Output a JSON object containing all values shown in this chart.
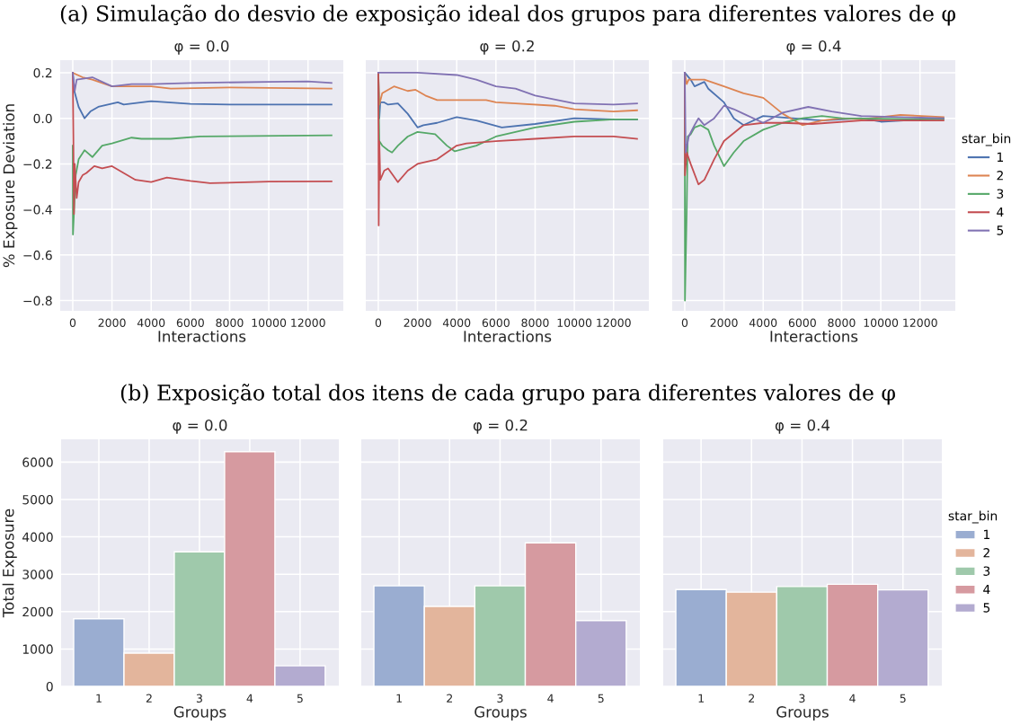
{
  "chart_data": [
    {
      "type": "line",
      "subtitle": "(a) Simulação do desvio de exposição ideal dos grupos para diferentes valores de φ",
      "title": "φ = 0.0",
      "xlabel": "Interactions",
      "ylabel": "% Exposure Deviation",
      "xlim": [
        -640,
        13800
      ],
      "ylim": [
        -0.845,
        0.255
      ],
      "xticks": [
        0,
        2000,
        4000,
        6000,
        8000,
        10000,
        12000
      ],
      "yticks": [
        {
          "value": -0.8,
          "label": "−0.8"
        },
        {
          "value": -0.6,
          "label": "−0.6"
        },
        {
          "value": -0.4,
          "label": "−0.4"
        },
        {
          "value": -0.2,
          "label": "−0.2"
        },
        {
          "value": 0.0,
          "label": "0.0"
        },
        {
          "value": 0.2,
          "label": "0.2"
        }
      ],
      "grid": true,
      "series": [
        {
          "color": "#4c72b0",
          "x": [
            0,
            80,
            300,
            600,
            900,
            1300,
            2300,
            2600,
            4000,
            6000,
            8000,
            10000,
            13200
          ],
          "values": [
            0.2,
            0.12,
            0.05,
            0.0,
            0.03,
            0.05,
            0.07,
            0.06,
            0.075,
            0.063,
            0.06,
            0.06,
            0.06
          ]
        },
        {
          "color": "#dd8452",
          "x": [
            0,
            500,
            1000,
            2000,
            3000,
            4000,
            5000,
            8000,
            13200
          ],
          "values": [
            0.2,
            0.18,
            0.17,
            0.14,
            0.14,
            0.14,
            0.13,
            0.135,
            0.13
          ]
        },
        {
          "color": "#55a868",
          "x": [
            0,
            10,
            150,
            300,
            600,
            1000,
            1500,
            2000,
            3000,
            3500,
            5000,
            6500,
            13200
          ],
          "values": [
            -0.12,
            -0.51,
            -0.25,
            -0.18,
            -0.14,
            -0.17,
            -0.12,
            -0.11,
            -0.085,
            -0.09,
            -0.09,
            -0.08,
            -0.075
          ]
        },
        {
          "color": "#c44e52",
          "x": [
            0,
            30,
            60,
            100,
            200,
            300,
            500,
            700,
            1100,
            1500,
            2000,
            3200,
            4000,
            4800,
            6000,
            7000,
            10000,
            13200
          ],
          "values": [
            0.2,
            -0.07,
            -0.42,
            -0.2,
            -0.35,
            -0.28,
            -0.25,
            -0.24,
            -0.21,
            -0.22,
            -0.21,
            -0.27,
            -0.28,
            -0.26,
            -0.275,
            -0.285,
            -0.278,
            -0.277
          ]
        },
        {
          "color": "#8172b3",
          "x": [
            0,
            100,
            200,
            1000,
            2000,
            3000,
            4000,
            6000,
            10000,
            12000,
            13200
          ],
          "values": [
            0.2,
            0.12,
            0.17,
            0.18,
            0.14,
            0.15,
            0.15,
            0.155,
            0.16,
            0.162,
            0.155
          ]
        }
      ]
    },
    {
      "type": "line",
      "title": "φ = 0.2",
      "xlabel": "Interactions",
      "xlim": [
        -640,
        13800
      ],
      "ylim": [
        -0.845,
        0.255
      ],
      "xticks": [
        0,
        2000,
        4000,
        6000,
        8000,
        10000,
        12000
      ],
      "yticks": [
        -0.8,
        -0.6,
        -0.4,
        -0.2,
        0.0,
        0.2
      ],
      "grid": true,
      "tick_labels": "x",
      "series": [
        {
          "color": "#4c72b0",
          "x": [
            0,
            50,
            100,
            300,
            500,
            1000,
            1500,
            2000,
            2300,
            3000,
            4000,
            5000,
            6300,
            8000,
            10000,
            12000,
            13200
          ],
          "values": [
            0.2,
            0.0,
            0.07,
            0.07,
            0.06,
            0.065,
            0.02,
            -0.04,
            -0.03,
            -0.02,
            0.005,
            -0.01,
            -0.04,
            -0.025,
            0.0,
            -0.005,
            -0.005
          ]
        },
        {
          "color": "#dd8452",
          "x": [
            0,
            50,
            200,
            400,
            800,
            1500,
            1900,
            2400,
            3000,
            4000,
            5500,
            6000,
            7000,
            9000,
            10000,
            12000,
            13200
          ],
          "values": [
            0.2,
            0.06,
            0.11,
            0.12,
            0.14,
            0.12,
            0.125,
            0.1,
            0.08,
            0.08,
            0.08,
            0.07,
            0.065,
            0.055,
            0.04,
            0.03,
            0.035
          ]
        },
        {
          "color": "#55a868",
          "x": [
            0,
            50,
            200,
            500,
            700,
            1000,
            1500,
            2000,
            2900,
            3500,
            3900,
            5000,
            6000,
            8000,
            10000,
            12000,
            13200
          ],
          "values": [
            0.2,
            -0.1,
            -0.12,
            -0.14,
            -0.15,
            -0.12,
            -0.08,
            -0.06,
            -0.07,
            -0.12,
            -0.145,
            -0.12,
            -0.08,
            -0.04,
            -0.015,
            -0.005,
            -0.005
          ]
        },
        {
          "color": "#c44e52",
          "x": [
            0,
            20,
            50,
            100,
            300,
            500,
            1000,
            1500,
            2000,
            3000,
            4000,
            4500,
            6000,
            8000,
            10000,
            12000,
            13200
          ],
          "values": [
            0.2,
            -0.47,
            -0.1,
            -0.27,
            -0.23,
            -0.22,
            -0.28,
            -0.23,
            -0.2,
            -0.18,
            -0.12,
            -0.11,
            -0.1,
            -0.09,
            -0.08,
            -0.08,
            -0.09
          ]
        },
        {
          "color": "#8172b3",
          "x": [
            0,
            2000,
            4000,
            5000,
            6000,
            7000,
            8000,
            10000,
            12000,
            13200
          ],
          "values": [
            0.2,
            0.2,
            0.19,
            0.17,
            0.14,
            0.13,
            0.1,
            0.065,
            0.06,
            0.065
          ]
        }
      ]
    },
    {
      "type": "line",
      "title": "φ = 0.4",
      "xlabel": "Interactions",
      "xlim": [
        -640,
        13800
      ],
      "ylim": [
        -0.845,
        0.255
      ],
      "xticks": [
        0,
        2000,
        4000,
        6000,
        8000,
        10000,
        12000
      ],
      "yticks": [
        -0.8,
        -0.6,
        -0.4,
        -0.2,
        0.0,
        0.2
      ],
      "grid": true,
      "tick_labels": "x",
      "legend": "right",
      "legend_title": "star_bin",
      "series": [
        {
          "name": "1",
          "color": "#4c72b0",
          "x": [
            0,
            300,
            500,
            1000,
            1200,
            2000,
            2500,
            3000,
            4000,
            5500,
            7000,
            9000,
            10000,
            13200
          ],
          "values": [
            0.2,
            0.17,
            0.14,
            0.16,
            0.13,
            0.07,
            0.0,
            -0.03,
            0.01,
            0.0,
            -0.01,
            0.0,
            -0.015,
            0.0
          ]
        },
        {
          "name": "2",
          "color": "#dd8452",
          "x": [
            0,
            100,
            200,
            1000,
            2000,
            3000,
            4000,
            5000,
            6000,
            7000,
            8000,
            9000,
            11000,
            13200
          ],
          "values": [
            0.2,
            0.15,
            0.17,
            0.17,
            0.14,
            0.11,
            0.09,
            0.02,
            -0.03,
            -0.01,
            0.0,
            -0.005,
            0.015,
            0.005
          ]
        },
        {
          "name": "3",
          "color": "#55a868",
          "x": [
            0,
            10,
            100,
            150,
            300,
            500,
            800,
            1200,
            1500,
            2000,
            2500,
            3000,
            4000,
            5000,
            6000,
            7000,
            8000,
            13200
          ],
          "values": [
            0.2,
            -0.8,
            -0.4,
            -0.08,
            -0.07,
            -0.04,
            -0.03,
            -0.05,
            -0.12,
            -0.21,
            -0.15,
            -0.1,
            -0.05,
            -0.02,
            0.0,
            0.01,
            0.0,
            -0.005
          ]
        },
        {
          "name": "4",
          "color": "#c44e52",
          "x": [
            0,
            10,
            100,
            300,
            700,
            1000,
            1500,
            2000,
            3000,
            4000,
            5000,
            6500,
            9000,
            11000,
            13200
          ],
          "values": [
            0.2,
            -0.25,
            -0.15,
            -0.2,
            -0.29,
            -0.27,
            -0.18,
            -0.1,
            -0.03,
            -0.02,
            -0.02,
            -0.025,
            -0.01,
            -0.01,
            -0.01
          ]
        },
        {
          "name": "5",
          "color": "#8172b3",
          "x": [
            0,
            50,
            200,
            500,
            700,
            1000,
            1500,
            2000,
            2500,
            3000,
            4000,
            5000,
            6300,
            7500,
            9000,
            13200
          ],
          "values": [
            0.2,
            -0.15,
            -0.08,
            -0.03,
            0.0,
            -0.03,
            0.0,
            0.055,
            0.04,
            0.02,
            -0.02,
            0.025,
            0.05,
            0.03,
            0.01,
            0.0
          ]
        }
      ]
    },
    {
      "type": "bar",
      "subtitle": "(b) Exposição total dos itens de cada grupo para diferentes valores de φ",
      "title": "φ = 0.0",
      "xlabel": "Groups",
      "ylabel": "Total Exposure",
      "categories": [
        "1",
        "2",
        "3",
        "4",
        "5"
      ],
      "ylim": [
        0,
        6610
      ],
      "yticks": [
        0,
        1000,
        2000,
        3000,
        4000,
        5000,
        6000
      ],
      "grid": true,
      "series": [
        {
          "color": "#9aadd1",
          "values": [
            1810,
            null,
            null,
            null,
            null
          ]
        },
        {
          "color": "#e3b59c",
          "values": [
            null,
            890,
            null,
            null,
            null
          ]
        },
        {
          "color": "#9fc9ab",
          "values": [
            null,
            null,
            3600,
            null,
            null
          ]
        },
        {
          "color": "#d69aa0",
          "values": [
            null,
            null,
            null,
            6280,
            null
          ]
        },
        {
          "color": "#b3abd0",
          "values": [
            null,
            null,
            null,
            null,
            550
          ]
        }
      ]
    },
    {
      "type": "bar",
      "title": "φ = 0.2",
      "xlabel": "Groups",
      "categories": [
        "1",
        "2",
        "3",
        "4",
        "5"
      ],
      "ylim": [
        0,
        6610
      ],
      "yticks": [
        0,
        1000,
        2000,
        3000,
        4000,
        5000,
        6000
      ],
      "grid": true,
      "tick_labels": "x",
      "series": [
        {
          "color": "#9aadd1",
          "values": [
            2690,
            null,
            null,
            null,
            null
          ]
        },
        {
          "color": "#e3b59c",
          "values": [
            null,
            2140,
            null,
            null,
            null
          ]
        },
        {
          "color": "#9fc9ab",
          "values": [
            null,
            null,
            2690,
            null,
            null
          ]
        },
        {
          "color": "#d69aa0",
          "values": [
            null,
            null,
            null,
            3840,
            null
          ]
        },
        {
          "color": "#b3abd0",
          "values": [
            null,
            null,
            null,
            null,
            1760
          ]
        }
      ]
    },
    {
      "type": "bar",
      "title": "φ = 0.4",
      "xlabel": "Groups",
      "categories": [
        "1",
        "2",
        "3",
        "4",
        "5"
      ],
      "ylim": [
        0,
        6610
      ],
      "yticks": [
        0,
        1000,
        2000,
        3000,
        4000,
        5000,
        6000
      ],
      "grid": true,
      "tick_labels": "x",
      "legend": "right",
      "legend_title": "star_bin",
      "series": [
        {
          "name": "1",
          "color": "#9aadd1",
          "values": [
            2590,
            null,
            null,
            null,
            null
          ]
        },
        {
          "name": "2",
          "color": "#e3b59c",
          "values": [
            null,
            2520,
            null,
            null,
            null
          ]
        },
        {
          "name": "3",
          "color": "#9fc9ab",
          "values": [
            null,
            null,
            2670,
            null,
            null
          ]
        },
        {
          "name": "4",
          "color": "#d69aa0",
          "values": [
            null,
            null,
            null,
            2730,
            null
          ]
        },
        {
          "name": "5",
          "color": "#b3abd0",
          "values": [
            null,
            null,
            null,
            null,
            2580
          ]
        }
      ]
    }
  ]
}
